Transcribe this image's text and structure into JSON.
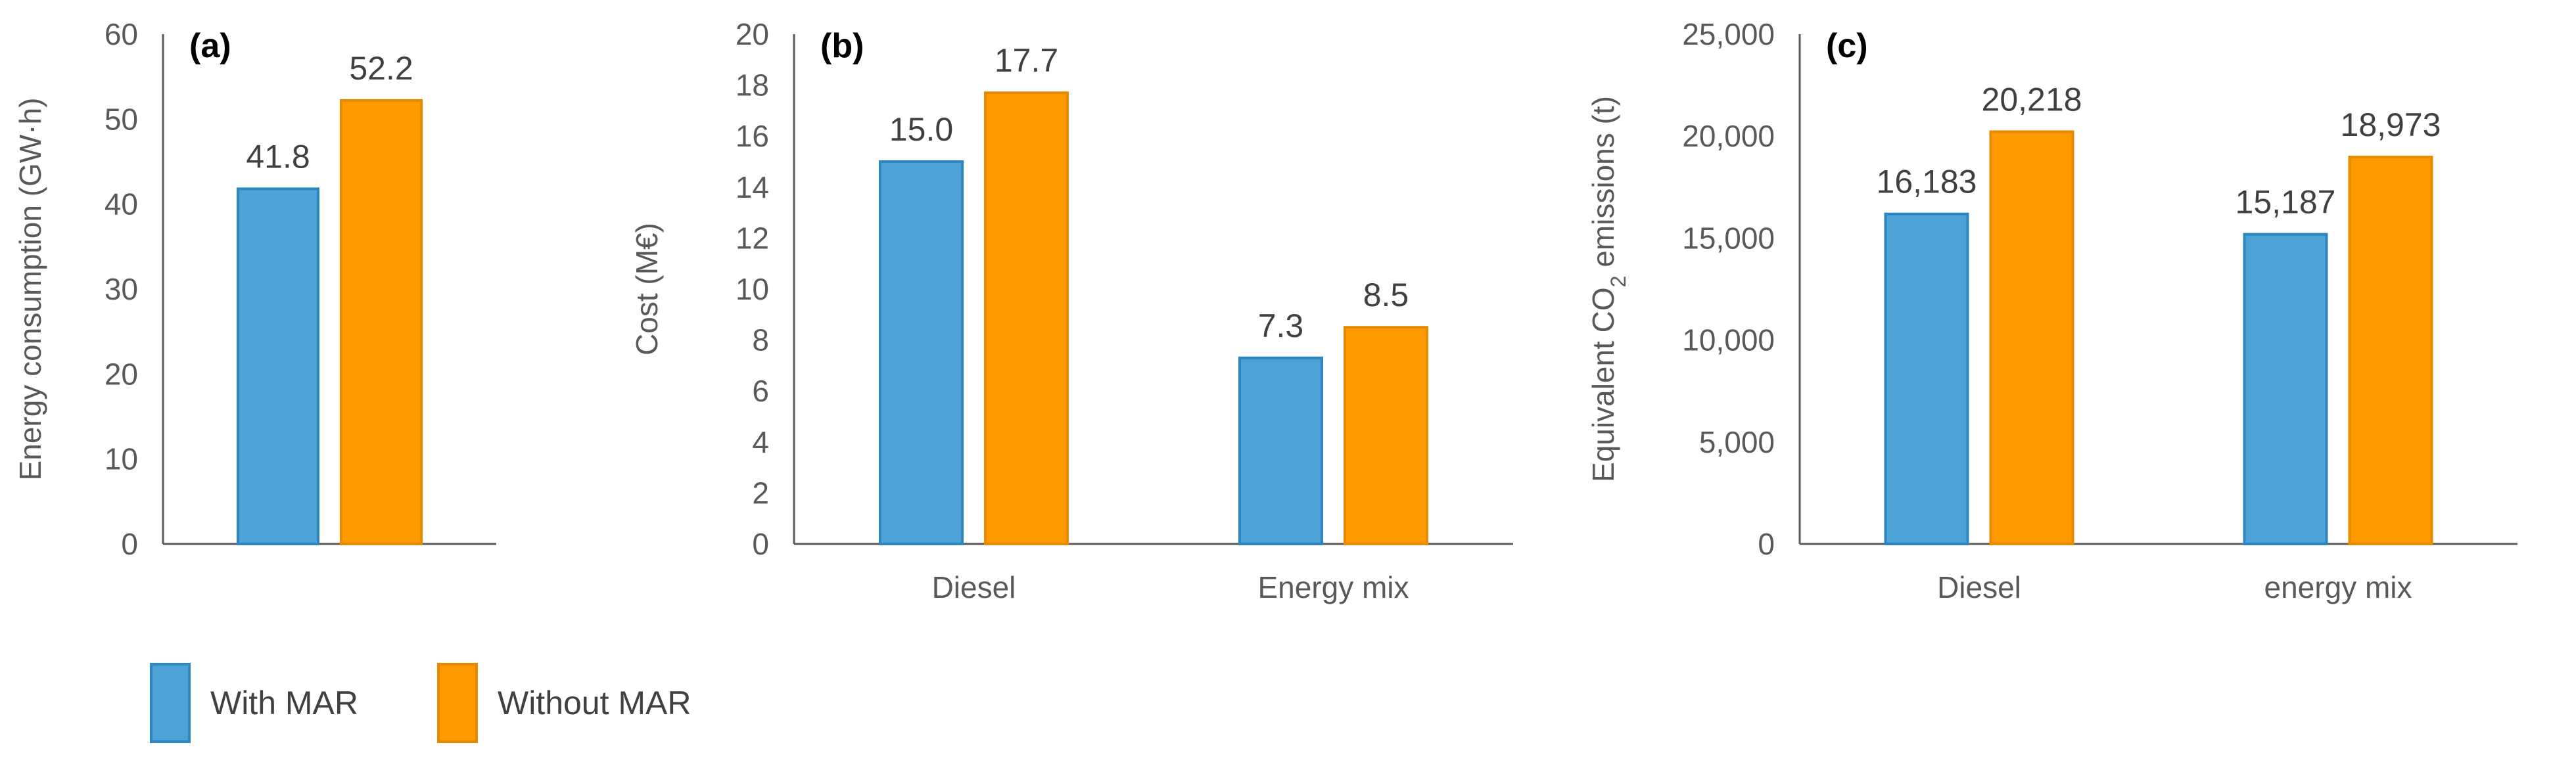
{
  "colors": {
    "with_mar": "#4da3d6",
    "with_mar_border": "#2e86c1",
    "without_mar": "#ff9900",
    "without_mar_border": "#e68a00",
    "axis": "#595959",
    "text": "#404040"
  },
  "legend": {
    "with_label": "With MAR",
    "without_label": "Without MAR"
  },
  "chart_data": [
    {
      "type": "bar",
      "panel_label": "(a)",
      "title": "",
      "xlabel": "",
      "ylabel": "Energy consumption (GW·h)",
      "ylim": [
        0,
        60
      ],
      "yticks": [
        0,
        10,
        20,
        30,
        40,
        50,
        60
      ],
      "ytick_labels": [
        "0",
        "10",
        "20",
        "30",
        "40",
        "50",
        "60"
      ],
      "categories": [
        ""
      ],
      "series": [
        {
          "name": "With MAR",
          "values": [
            41.8
          ],
          "labels": [
            "41.8"
          ]
        },
        {
          "name": "Without MAR",
          "values": [
            52.2
          ],
          "labels": [
            "52.2"
          ]
        }
      ]
    },
    {
      "type": "bar",
      "panel_label": "(b)",
      "title": "",
      "xlabel": "",
      "ylabel": "Cost (M€)",
      "ylim": [
        0,
        20
      ],
      "yticks": [
        0,
        2,
        4,
        6,
        8,
        10,
        12,
        14,
        16,
        18,
        20
      ],
      "ytick_labels": [
        "0",
        "2",
        "4",
        "6",
        "8",
        "10",
        "12",
        "14",
        "16",
        "18",
        "20"
      ],
      "categories": [
        "Diesel",
        "Energy mix"
      ],
      "series": [
        {
          "name": "With MAR",
          "values": [
            15.0,
            7.3
          ],
          "labels": [
            "15.0",
            "7.3"
          ]
        },
        {
          "name": "Without MAR",
          "values": [
            17.7,
            8.5
          ],
          "labels": [
            "17.7",
            "8.5"
          ]
        }
      ]
    },
    {
      "type": "bar",
      "panel_label": "(c)",
      "title": "",
      "xlabel": "",
      "ylabel": "Equivalent CO2 emissions (t)",
      "ylabel_parts": {
        "pre": "Equivalent CO",
        "sub": "2",
        "post": " emissions (t)"
      },
      "ylim": [
        0,
        25000
      ],
      "yticks": [
        0,
        5000,
        10000,
        15000,
        20000,
        25000
      ],
      "ytick_labels": [
        "0",
        "5,000",
        "10,000",
        "15,000",
        "20,000",
        "25,000"
      ],
      "categories": [
        "Diesel",
        "energy mix"
      ],
      "series": [
        {
          "name": "With MAR",
          "values": [
            16183,
            15187
          ],
          "labels": [
            "16,183",
            "15,187"
          ]
        },
        {
          "name": "Without MAR",
          "values": [
            20218,
            18973
          ],
          "labels": [
            "20,218",
            "18,973"
          ]
        }
      ]
    }
  ]
}
